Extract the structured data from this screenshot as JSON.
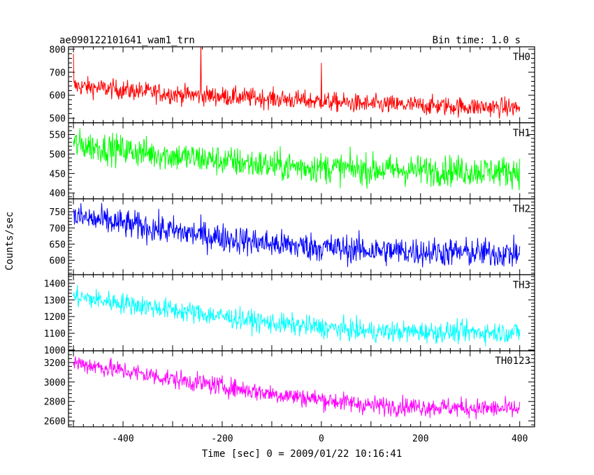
{
  "chart_data": {
    "type": "line",
    "title": "ae090122101641_wam1_trn",
    "subtitle": "Bin time: 1.0 s",
    "xlabel": "Time [sec] 0 = 2009/01/22 10:16:41",
    "ylabel": "Counts/sec",
    "xlim": [
      -510,
      430
    ],
    "xticks": [
      -400,
      -200,
      0,
      200,
      400
    ],
    "panels": [
      {
        "name": "TH0",
        "color": "#ff0000",
        "ylim": [
          480,
          810
        ],
        "yticks": [
          500,
          600,
          700,
          800
        ],
        "trend": [
          [
            -500,
            640
          ],
          [
            -300,
            605
          ],
          [
            -100,
            585
          ],
          [
            100,
            560
          ],
          [
            400,
            545
          ]
        ],
        "noise": 30,
        "spikes": [
          [
            -500,
            780
          ],
          [
            -243,
            830
          ],
          [
            0,
            740
          ]
        ]
      },
      {
        "name": "TH1",
        "color": "#00ff00",
        "ylim": [
          385,
          580
        ],
        "yticks": [
          400,
          450,
          500,
          550
        ],
        "trend": [
          [
            -500,
            525
          ],
          [
            -300,
            495
          ],
          [
            -100,
            470
          ],
          [
            100,
            460
          ],
          [
            400,
            455
          ]
        ],
        "noise": 28,
        "spikes": []
      },
      {
        "name": "TH2",
        "color": "#0000ff",
        "ylim": [
          555,
          790
        ],
        "yticks": [
          600,
          650,
          700,
          750
        ],
        "trend": [
          [
            -500,
            735
          ],
          [
            -300,
            690
          ],
          [
            -100,
            650
          ],
          [
            100,
            630
          ],
          [
            400,
            620
          ]
        ],
        "noise": 32,
        "spikes": []
      },
      {
        "name": "TH3",
        "color": "#00ffff",
        "ylim": [
          995,
          1450
        ],
        "yticks": [
          1000,
          1100,
          1200,
          1300,
          1400
        ],
        "trend": [
          [
            -500,
            1320
          ],
          [
            -300,
            1240
          ],
          [
            -100,
            1160
          ],
          [
            100,
            1110
          ],
          [
            400,
            1105
          ]
        ],
        "noise": 45,
        "spikes": []
      },
      {
        "name": "TH0123",
        "color": "#ff00ff",
        "ylim": [
          2540,
          3320
        ],
        "yticks": [
          2600,
          2800,
          3000,
          3200
        ],
        "trend": [
          [
            -500,
            3200
          ],
          [
            -300,
            3030
          ],
          [
            -100,
            2880
          ],
          [
            100,
            2760
          ],
          [
            400,
            2720
          ]
        ],
        "noise": 70,
        "spikes": []
      }
    ]
  }
}
